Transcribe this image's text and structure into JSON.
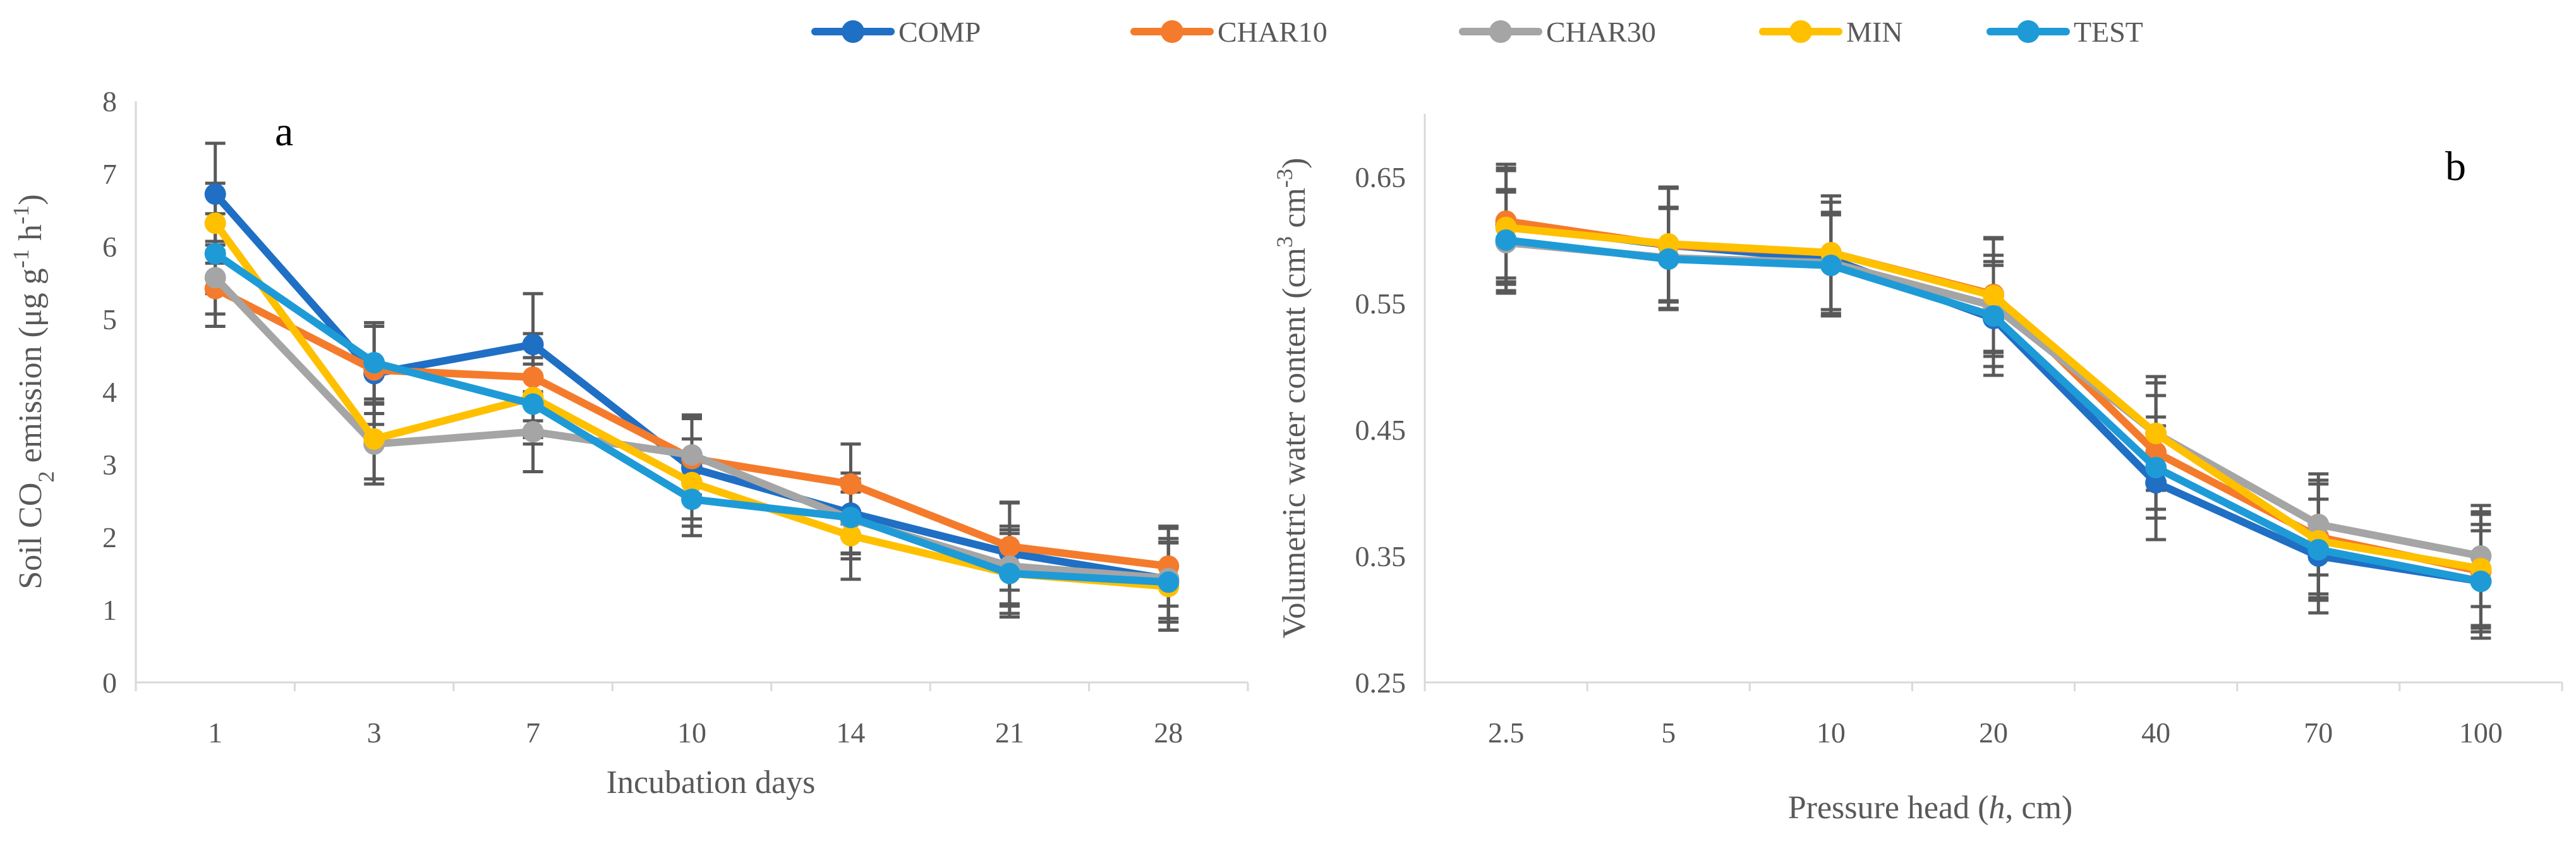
{
  "legend": [
    {
      "label": "COMP",
      "color": "#1F6FC4"
    },
    {
      "label": "CHAR10",
      "color": "#F47B2C"
    },
    {
      "label": "CHAR30",
      "color": "#A5A5A5"
    },
    {
      "label": "MIN",
      "color": "#FFC000"
    },
    {
      "label": "TEST",
      "color": "#1E9BD7"
    }
  ],
  "error_bar_color": "#595959",
  "chart_data": [
    {
      "type": "line",
      "panel_label": "a",
      "xlabel": "Incubation days",
      "ylabel_parts": [
        "Soil CO",
        "2",
        " emission (μg g",
        "-1",
        " h",
        "-1",
        ")"
      ],
      "categories": [
        "1",
        "3",
        "7",
        "10",
        "14",
        "21",
        "28"
      ],
      "ylim": [
        0,
        8
      ],
      "yticks": [
        "0",
        "1",
        "2",
        "3",
        "4",
        "5",
        "6",
        "7",
        "8"
      ],
      "grid": false,
      "legend_position": "top-center",
      "series": [
        {
          "name": "COMP",
          "values": [
            6.72,
            4.25,
            4.65,
            2.95,
            2.33,
            1.78,
            1.42
          ],
          "errors": [
            0.7,
            0.7,
            0.7,
            0.7,
            0.55,
            0.7,
            0.7
          ]
        },
        {
          "name": "CHAR10",
          "values": [
            5.42,
            4.3,
            4.2,
            3.08,
            2.73,
            1.87,
            1.6
          ],
          "errors": [
            0.52,
            0.6,
            0.6,
            0.55,
            0.55,
            0.6,
            0.55
          ]
        },
        {
          "name": "CHAR30",
          "values": [
            5.57,
            3.28,
            3.45,
            3.13,
            2.25,
            1.6,
            1.43
          ],
          "errors": [
            0.5,
            0.55,
            0.55,
            0.55,
            0.55,
            0.55,
            0.55
          ]
        },
        {
          "name": "MIN",
          "values": [
            6.32,
            3.35,
            3.92,
            2.75,
            2.02,
            1.5,
            1.32
          ],
          "errors": [
            0.55,
            0.55,
            0.55,
            0.6,
            0.6,
            0.6,
            0.6
          ]
        },
        {
          "name": "TEST",
          "values": [
            5.9,
            4.4,
            3.83,
            2.52,
            2.27,
            1.5,
            1.38
          ],
          "errors": [
            0.55,
            0.55,
            0.55,
            0.5,
            0.5,
            0.55,
            0.55
          ]
        }
      ]
    },
    {
      "type": "line",
      "panel_label": "b",
      "xlabel_parts": [
        "Pressure head (",
        "h",
        ", cm)"
      ],
      "ylabel_parts": [
        "Volumetric water content (cm",
        "3",
        " cm",
        "-3",
        ")"
      ],
      "categories": [
        "2.5",
        "5",
        "10",
        "20",
        "40",
        "70",
        "100"
      ],
      "ylim": [
        0.25,
        0.7
      ],
      "yticks": [
        "0.25",
        "0.35",
        "0.45",
        "0.55",
        "0.65"
      ],
      "grid": false,
      "legend_position": "top-center",
      "series": [
        {
          "name": "COMP",
          "values": [
            0.612,
            0.596,
            0.585,
            0.538,
            0.408,
            0.35,
            0.33
          ],
          "errors": [
            0.045,
            0.045,
            0.045,
            0.045,
            0.045,
            0.045,
            0.045
          ]
        },
        {
          "name": "CHAR10",
          "values": [
            0.615,
            0.596,
            0.59,
            0.557,
            0.432,
            0.365,
            0.338
          ],
          "errors": [
            0.045,
            0.045,
            0.045,
            0.045,
            0.045,
            0.045,
            0.045
          ]
        },
        {
          "name": "CHAR30",
          "values": [
            0.598,
            0.586,
            0.582,
            0.548,
            0.447,
            0.375,
            0.35
          ],
          "errors": [
            0.04,
            0.04,
            0.04,
            0.04,
            0.04,
            0.04,
            0.04
          ]
        },
        {
          "name": "MIN",
          "values": [
            0.61,
            0.597,
            0.59,
            0.556,
            0.447,
            0.362,
            0.34
          ],
          "errors": [
            0.045,
            0.045,
            0.045,
            0.045,
            0.045,
            0.045,
            0.045
          ]
        },
        {
          "name": "TEST",
          "values": [
            0.6,
            0.585,
            0.58,
            0.54,
            0.42,
            0.355,
            0.33
          ],
          "errors": [
            0.04,
            0.04,
            0.04,
            0.04,
            0.04,
            0.04,
            0.04
          ]
        }
      ]
    }
  ]
}
